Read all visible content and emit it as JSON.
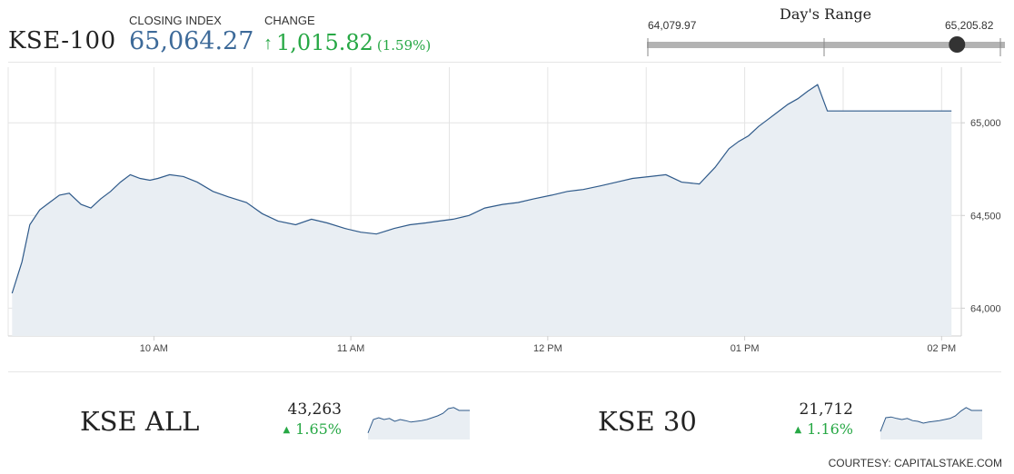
{
  "header": {
    "index_name": "KSE-100",
    "closing_label": "CLOSING INDEX",
    "closing_value": "65,064.27",
    "change_label": "CHANGE",
    "change_arrow": "↑",
    "change_value": "1,015.82",
    "change_pct": "(1.59%)"
  },
  "day_range": {
    "title": "Day's Range",
    "low": "64,079.97",
    "high": "65,205.82",
    "current_fraction": 0.877
  },
  "chart_data": {
    "type": "area",
    "title": "",
    "xlabel": "",
    "ylabel": "",
    "ylim": [
      63850,
      65300
    ],
    "y_ticks": [
      "64,000",
      "64,500",
      "65,000"
    ],
    "y_tick_values": [
      64000,
      64500,
      65000
    ],
    "x_ticks": [
      "10 AM",
      "11 AM",
      "12 PM",
      "01 PM",
      "02 PM"
    ],
    "x_tick_hours": [
      10,
      11,
      12,
      13,
      14
    ],
    "grid": true,
    "legend": "none",
    "colors": {
      "line": "#2f5a8a",
      "fill": "#e9eef3",
      "grid": "#e4e4e4"
    },
    "series": [
      {
        "x": [
          9.28,
          9.33,
          9.37,
          9.42,
          9.47,
          9.52,
          9.57,
          9.63,
          9.68,
          9.73,
          9.78,
          9.83,
          9.88,
          9.93,
          9.98,
          10.02,
          10.08,
          10.15,
          10.22,
          10.3,
          10.38,
          10.47,
          10.55,
          10.63,
          10.72,
          10.8,
          10.88,
          10.97,
          11.05,
          11.13,
          11.22,
          11.3,
          11.38,
          11.45,
          11.52,
          11.6,
          11.68,
          11.77,
          11.85,
          11.93,
          12.02,
          12.1,
          12.18,
          12.27,
          12.35,
          12.43,
          12.52,
          12.6,
          12.68,
          12.77,
          12.85,
          12.92,
          12.97,
          13.02,
          13.07,
          13.12,
          13.17,
          13.22,
          13.27,
          13.32,
          13.37,
          13.42,
          13.47,
          13.5,
          13.52,
          13.6,
          13.7,
          13.8,
          13.9,
          14.0,
          14.05
        ],
        "y": [
          64080,
          64250,
          64450,
          64530,
          64570,
          64610,
          64620,
          64560,
          64540,
          64590,
          64630,
          64680,
          64720,
          64700,
          64690,
          64700,
          64720,
          64710,
          64680,
          64630,
          64600,
          64570,
          64510,
          64470,
          64450,
          64480,
          64460,
          64430,
          64410,
          64400,
          64430,
          64450,
          64460,
          64470,
          64480,
          64500,
          64540,
          64560,
          64570,
          64590,
          64610,
          64630,
          64640,
          64660,
          64680,
          64700,
          64710,
          64720,
          64680,
          64670,
          64760,
          64860,
          64900,
          64930,
          64980,
          65020,
          65060,
          65100,
          65130,
          65170,
          65206,
          65064,
          65064,
          65064,
          65064,
          65064,
          65064,
          65064,
          65064,
          65064,
          65064
        ]
      }
    ]
  },
  "sub_indices": [
    {
      "name": "KSE ALL",
      "value": "43,263",
      "change_pct": "1.65%",
      "direction": "up",
      "spark": [
        0.18,
        0.55,
        0.6,
        0.55,
        0.58,
        0.5,
        0.55,
        0.52,
        0.48,
        0.5,
        0.52,
        0.55,
        0.6,
        0.65,
        0.72,
        0.85,
        0.88,
        0.8,
        0.8,
        0.8
      ]
    },
    {
      "name": "KSE 30",
      "value": "21,712",
      "change_pct": "1.16%",
      "direction": "up",
      "spark": [
        0.22,
        0.6,
        0.62,
        0.58,
        0.55,
        0.58,
        0.52,
        0.5,
        0.45,
        0.48,
        0.5,
        0.52,
        0.55,
        0.58,
        0.65,
        0.78,
        0.88,
        0.8,
        0.8,
        0.8
      ]
    }
  ],
  "footer": {
    "courtesy": "COURTESY: CAPITALSTAKE.COM"
  }
}
